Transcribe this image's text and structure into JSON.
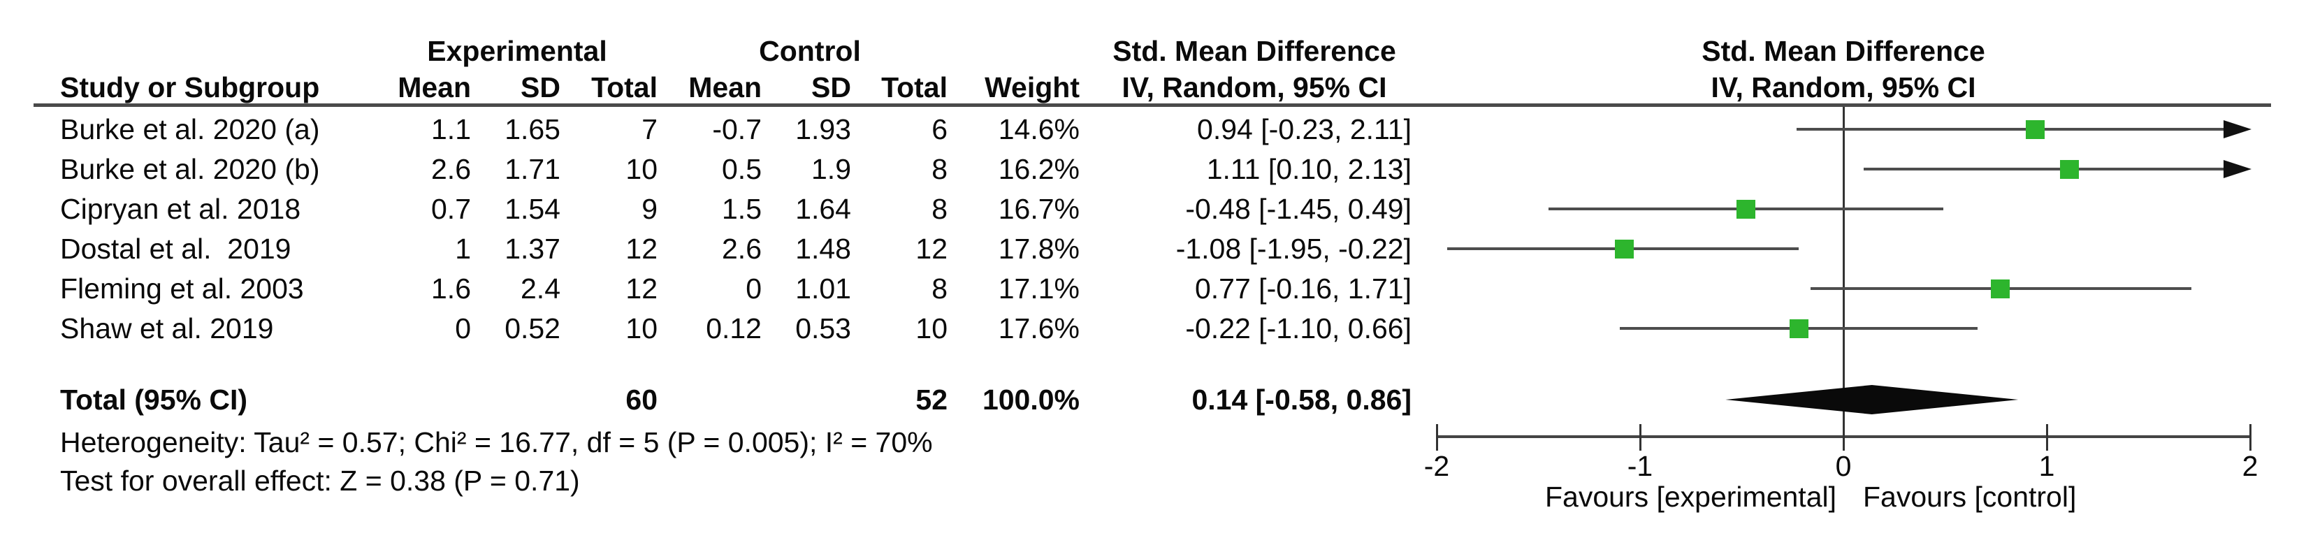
{
  "table": {
    "group_headers": {
      "experimental": "Experimental",
      "control": "Control",
      "smd_text_col": "Std. Mean Difference",
      "smd_plot_col": "Std. Mean Difference"
    },
    "col_headers": {
      "study": "Study or Subgroup",
      "exp_mean": "Mean",
      "exp_sd": "SD",
      "exp_total": "Total",
      "ctl_mean": "Mean",
      "ctl_sd": "SD",
      "ctl_total": "Total",
      "weight": "Weight",
      "iv_text_col": "IV, Random, 95% CI",
      "iv_plot_col": "IV, Random, 95% CI"
    },
    "rows": [
      {
        "study": "Burke et al. 2020 (a)",
        "exp_mean": "1.1",
        "exp_sd": "1.65",
        "exp_total": "7",
        "ctl_mean": "-0.7",
        "ctl_sd": "1.93",
        "ctl_total": "6",
        "weight": "14.6%",
        "smd": "0.94 [-0.23, 2.11]"
      },
      {
        "study": "Burke et al. 2020 (b)",
        "exp_mean": "2.6",
        "exp_sd": "1.71",
        "exp_total": "10",
        "ctl_mean": "0.5",
        "ctl_sd": "1.9",
        "ctl_total": "8",
        "weight": "16.2%",
        "smd": "1.11 [0.10, 2.13]"
      },
      {
        "study": "Cipryan et al. 2018",
        "exp_mean": "0.7",
        "exp_sd": "1.54",
        "exp_total": "9",
        "ctl_mean": "1.5",
        "ctl_sd": "1.64",
        "ctl_total": "8",
        "weight": "16.7%",
        "smd": "-0.48 [-1.45, 0.49]"
      },
      {
        "study": "Dostal et al.  2019",
        "exp_mean": "1",
        "exp_sd": "1.37",
        "exp_total": "12",
        "ctl_mean": "2.6",
        "ctl_sd": "1.48",
        "ctl_total": "12",
        "weight": "17.8%",
        "smd": "-1.08 [-1.95, -0.22]"
      },
      {
        "study": "Fleming et al. 2003",
        "exp_mean": "1.6",
        "exp_sd": "2.4",
        "exp_total": "12",
        "ctl_mean": "0",
        "ctl_sd": "1.01",
        "ctl_total": "8",
        "weight": "17.1%",
        "smd": "0.77 [-0.16, 1.71]"
      },
      {
        "study": "Shaw et al. 2019",
        "exp_mean": "0",
        "exp_sd": "0.52",
        "exp_total": "10",
        "ctl_mean": "0.12",
        "ctl_sd": "0.53",
        "ctl_total": "10",
        "weight": "17.6%",
        "smd": "-0.22 [-1.10, 0.66]"
      }
    ],
    "total_row": {
      "label": "Total (95% CI)",
      "exp_total": "60",
      "ctl_total": "52",
      "weight": "100.0%",
      "smd": "0.14 [-0.58, 0.86]"
    },
    "heterogeneity": "Heterogeneity: Tau² = 0.57; Chi² = 16.77, df = 5 (P = 0.005); I² = 70%",
    "overall_effect": "Test for overall effect: Z = 0.38 (P = 0.71)"
  },
  "chart_data": {
    "type": "forest",
    "effect_measure": "Std. Mean Difference",
    "method": "IV, Random, 95% CI",
    "studies": [
      {
        "name": "Burke et al. 2020 (a)",
        "est": 0.94,
        "lo": -0.23,
        "hi": 2.11,
        "weight_pct": 14.6
      },
      {
        "name": "Burke et al. 2020 (b)",
        "est": 1.11,
        "lo": 0.1,
        "hi": 2.13,
        "weight_pct": 16.2
      },
      {
        "name": "Cipryan et al. 2018",
        "est": -0.48,
        "lo": -1.45,
        "hi": 0.49,
        "weight_pct": 16.7
      },
      {
        "name": "Dostal et al.  2019",
        "est": -1.08,
        "lo": -1.95,
        "hi": -0.22,
        "weight_pct": 17.8
      },
      {
        "name": "Fleming et al. 2003",
        "est": 0.77,
        "lo": -0.16,
        "hi": 1.71,
        "weight_pct": 17.1
      },
      {
        "name": "Shaw et al. 2019",
        "est": -0.22,
        "lo": -1.1,
        "hi": 0.66,
        "weight_pct": 17.6
      }
    ],
    "overall": {
      "label": "Total (95% CI)",
      "est": 0.14,
      "lo": -0.58,
      "hi": 0.86
    },
    "axis": {
      "min": -2,
      "max": 2,
      "ticks": [
        -2,
        -1,
        0,
        1,
        2
      ],
      "tick_labels": [
        "-2",
        "-1",
        "0",
        "1",
        "2"
      ]
    },
    "favours_left": "Favours [experimental]",
    "favours_right": "Favours [control]",
    "marker_color": "#2db52d",
    "line_color": "#4d4d4d",
    "diamond_color": "#0a0a0a"
  }
}
